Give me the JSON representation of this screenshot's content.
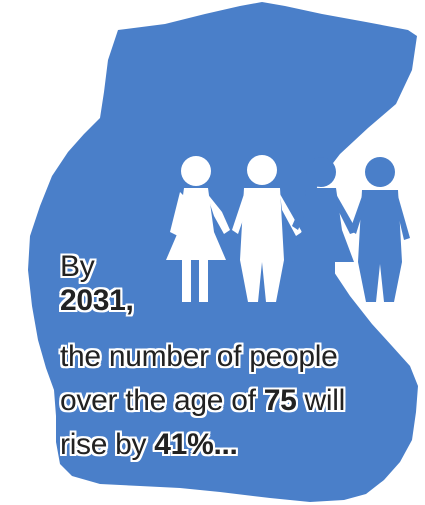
{
  "colors": {
    "map_fill": "#4a7fc9",
    "figure_white": "#ffffff",
    "figure_blue": "#4a7fc9",
    "text": "#222222"
  },
  "icons": [
    "map-silhouette",
    "four-people-holding-hands"
  ],
  "text": {
    "line1": "By",
    "line2": "2031,",
    "line3": "the number of people",
    "line4_pre": "over the age of ",
    "line4_num": "75",
    "line4_post": " will",
    "line5_pre": "rise by ",
    "line5_num": "41%...",
    "line5_post": ""
  }
}
